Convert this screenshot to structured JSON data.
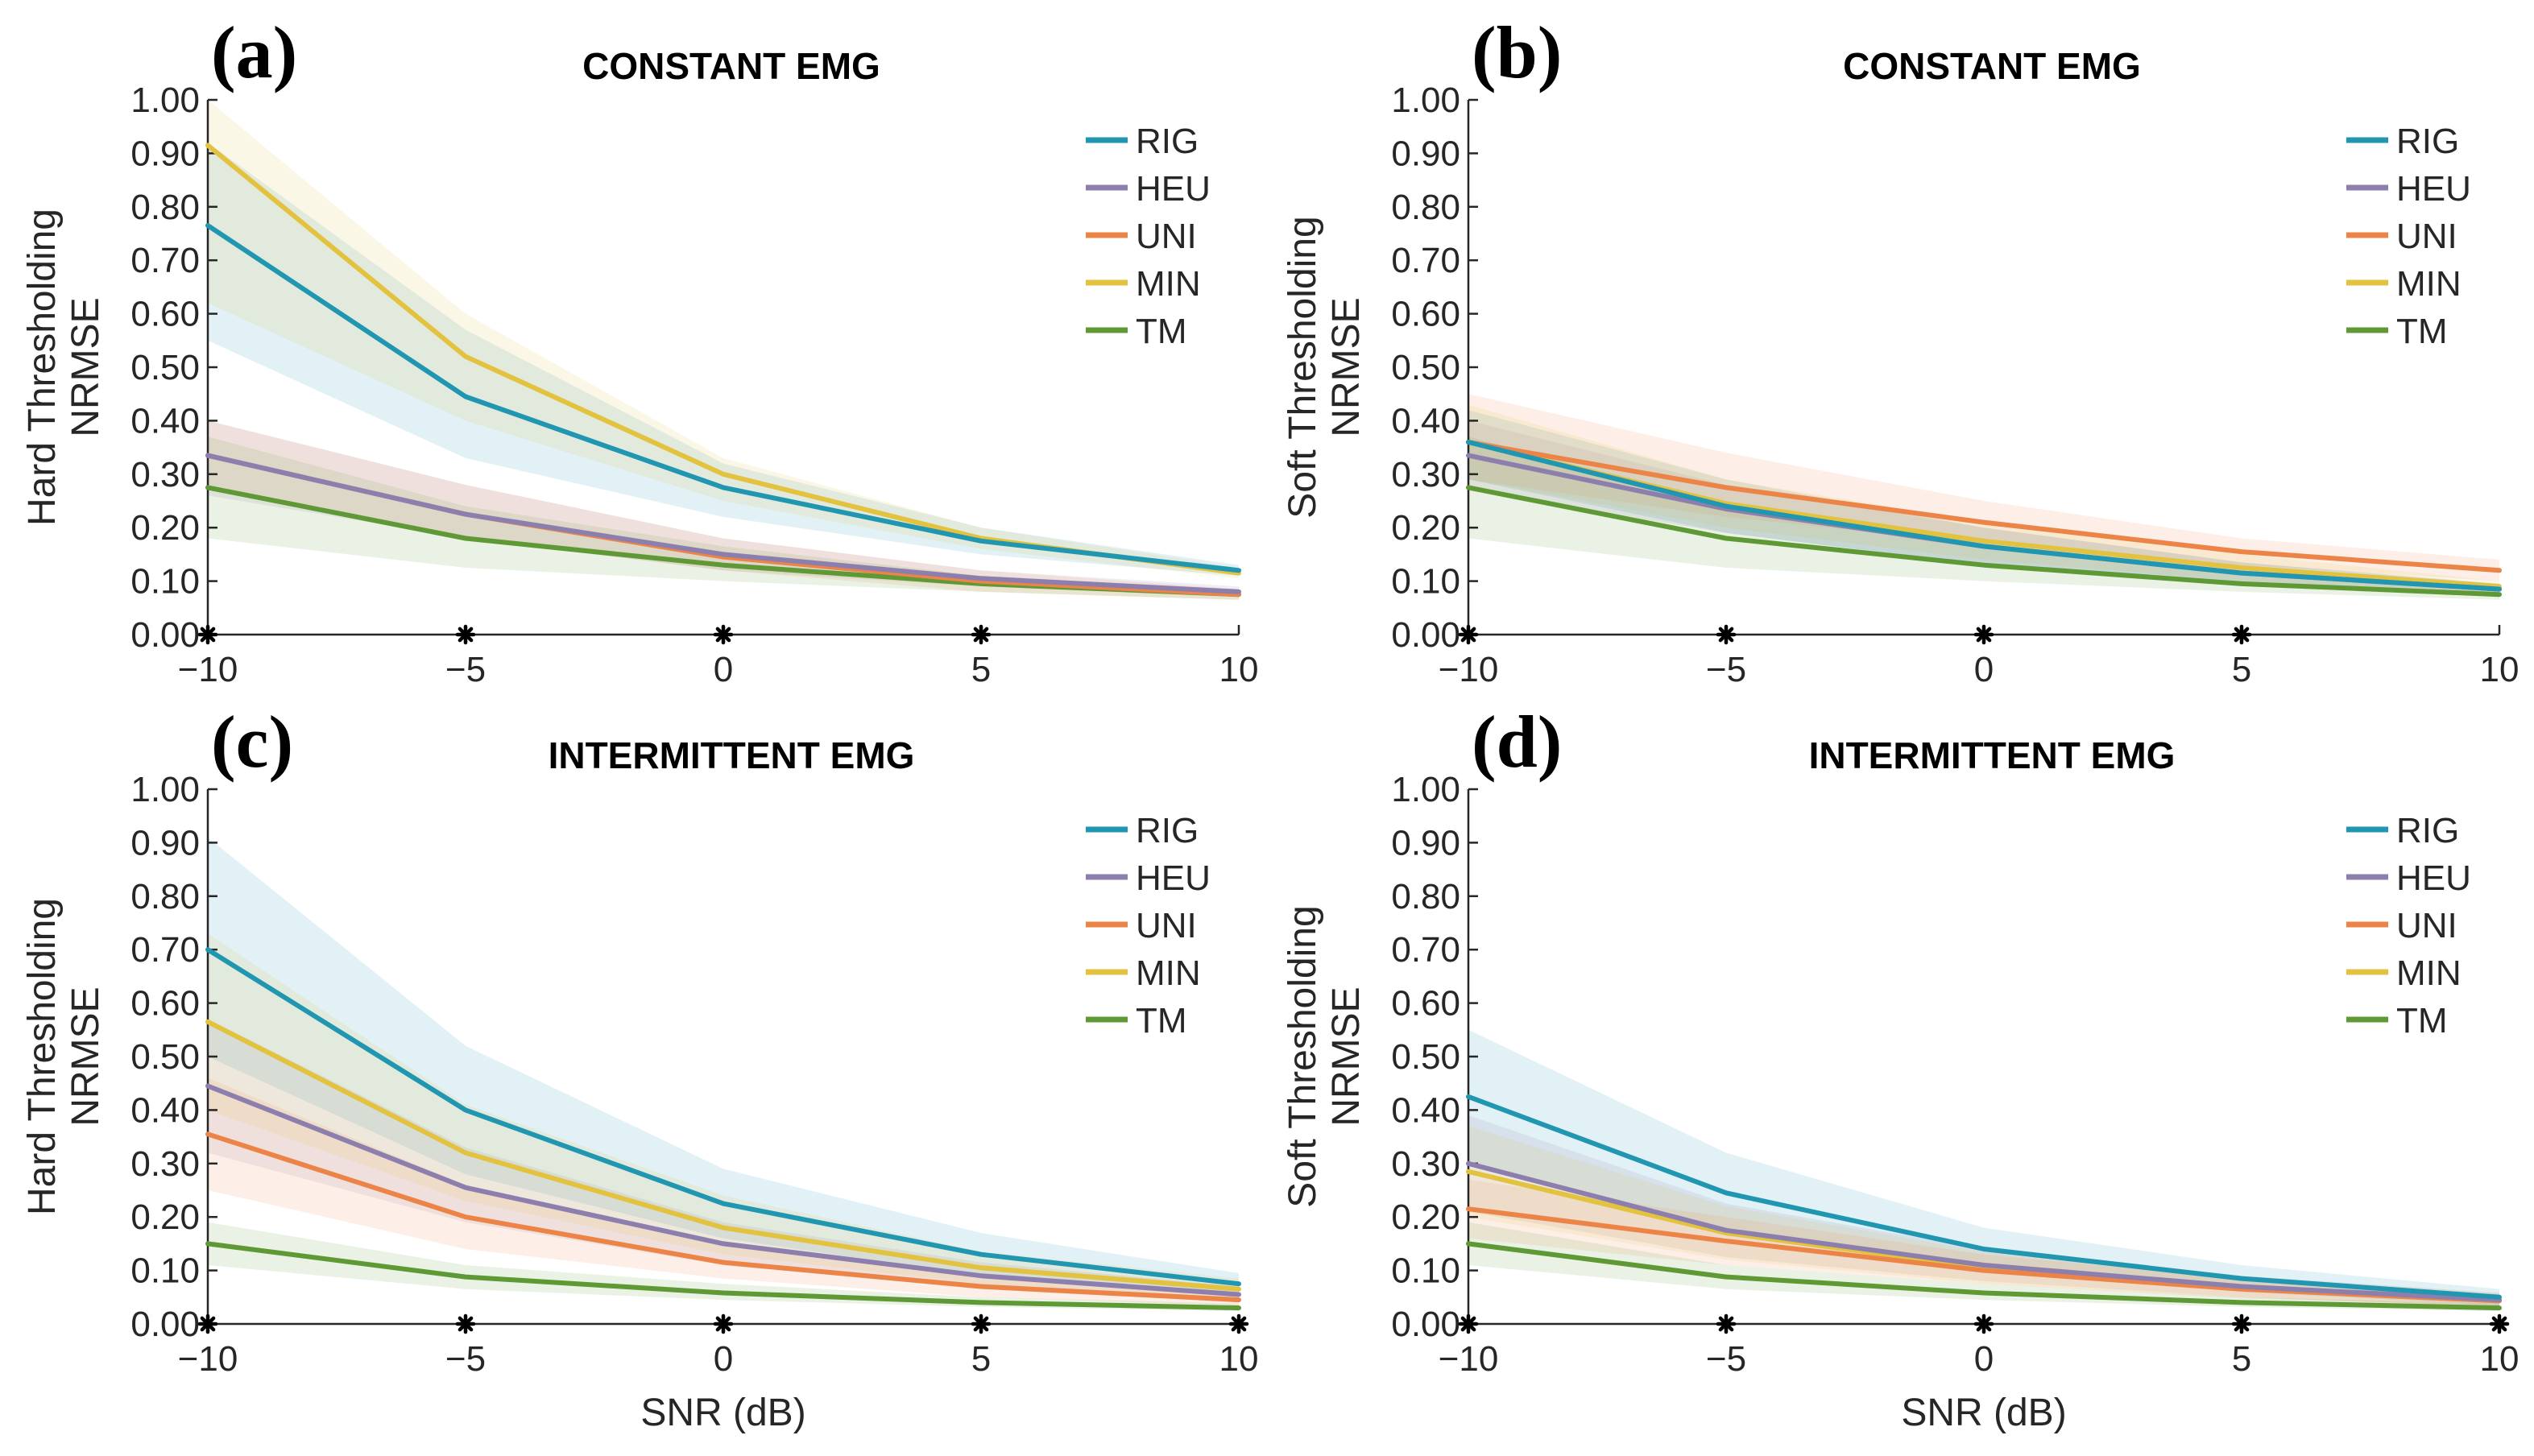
{
  "colors": {
    "RIG": "#2196b0",
    "HEU": "#8d7fad",
    "UNI": "#ec8448",
    "MIN": "#e2c23f",
    "TM": "#5f9935",
    "axis": "#262626"
  },
  "chart_data": [
    {
      "type": "line",
      "panel_label": "(a)",
      "title": "CONSTANT EMG",
      "ylabel_line1": "Hard Thresholding",
      "ylabel_line2": "NRMSE",
      "xlabel": "",
      "x": [
        -10,
        -5,
        0,
        5,
        10
      ],
      "xticks": [
        "−10",
        "−5",
        "0",
        "5",
        "10"
      ],
      "yticks": [
        "0.00",
        "0.10",
        "0.20",
        "0.30",
        "0.40",
        "0.50",
        "0.60",
        "0.70",
        "0.80",
        "0.90",
        "1.00"
      ],
      "xlim": [
        -10,
        10
      ],
      "ylim": [
        0,
        1
      ],
      "legend": "top-right",
      "series": [
        {
          "name": "RIG",
          "values": [
            0.765,
            0.445,
            0.275,
            0.175,
            0.12
          ],
          "lower": [
            0.55,
            0.33,
            0.22,
            0.15,
            0.11
          ],
          "upper": [
            0.92,
            0.57,
            0.32,
            0.2,
            0.13
          ]
        },
        {
          "name": "HEU",
          "values": [
            0.335,
            0.225,
            0.15,
            0.105,
            0.08
          ],
          "lower": [
            0.26,
            0.18,
            0.12,
            0.09,
            0.07
          ],
          "upper": [
            0.4,
            0.28,
            0.18,
            0.12,
            0.09
          ]
        },
        {
          "name": "UNI",
          "values": [
            0.335,
            0.225,
            0.145,
            0.1,
            0.075
          ],
          "lower": [
            0.27,
            0.18,
            0.12,
            0.08,
            0.065
          ],
          "upper": [
            0.4,
            0.28,
            0.18,
            0.12,
            0.085
          ]
        },
        {
          "name": "MIN",
          "values": [
            0.915,
            0.52,
            0.3,
            0.18,
            0.115
          ],
          "lower": [
            0.62,
            0.4,
            0.25,
            0.16,
            0.105
          ],
          "upper": [
            1.0,
            0.6,
            0.33,
            0.2,
            0.125
          ]
        },
        {
          "name": "TM",
          "values": [
            0.275,
            0.18,
            0.13,
            0.095,
            0.075
          ],
          "lower": [
            0.18,
            0.125,
            0.1,
            0.08,
            0.065
          ],
          "upper": [
            0.37,
            0.24,
            0.165,
            0.11,
            0.085
          ]
        }
      ],
      "significance_markers_at_x": [
        -10,
        -5,
        0,
        5
      ]
    },
    {
      "type": "line",
      "panel_label": "(b)",
      "title": "CONSTANT EMG",
      "ylabel_line1": "Soft Thresholding",
      "ylabel_line2": "NRMSE",
      "xlabel": "",
      "x": [
        -10,
        -5,
        0,
        5,
        10
      ],
      "xticks": [
        "−10",
        "−5",
        "0",
        "5",
        "10"
      ],
      "yticks": [
        "0.00",
        "0.10",
        "0.20",
        "0.30",
        "0.40",
        "0.50",
        "0.60",
        "0.70",
        "0.80",
        "0.90",
        "1.00"
      ],
      "xlim": [
        -10,
        10
      ],
      "ylim": [
        0,
        1
      ],
      "legend": "top-right",
      "series": [
        {
          "name": "RIG",
          "values": [
            0.36,
            0.24,
            0.165,
            0.115,
            0.085
          ],
          "lower": [
            0.29,
            0.19,
            0.13,
            0.095,
            0.075
          ],
          "upper": [
            0.42,
            0.29,
            0.2,
            0.135,
            0.095
          ]
        },
        {
          "name": "HEU",
          "values": [
            0.335,
            0.235,
            0.165,
            0.115,
            0.085
          ],
          "lower": [
            0.27,
            0.19,
            0.13,
            0.095,
            0.075
          ],
          "upper": [
            0.4,
            0.28,
            0.2,
            0.135,
            0.095
          ]
        },
        {
          "name": "UNI",
          "values": [
            0.36,
            0.275,
            0.21,
            0.155,
            0.12
          ],
          "lower": [
            0.29,
            0.22,
            0.17,
            0.13,
            0.1
          ],
          "upper": [
            0.45,
            0.34,
            0.25,
            0.18,
            0.14
          ]
        },
        {
          "name": "MIN",
          "values": [
            0.36,
            0.245,
            0.175,
            0.125,
            0.09
          ],
          "lower": [
            0.29,
            0.2,
            0.14,
            0.1,
            0.078
          ],
          "upper": [
            0.43,
            0.29,
            0.21,
            0.15,
            0.1
          ]
        },
        {
          "name": "TM",
          "values": [
            0.275,
            0.18,
            0.13,
            0.095,
            0.075
          ],
          "lower": [
            0.18,
            0.125,
            0.1,
            0.08,
            0.065
          ],
          "upper": [
            0.37,
            0.24,
            0.165,
            0.11,
            0.085
          ]
        }
      ],
      "significance_markers_at_x": [
        -10,
        -5,
        0,
        5
      ]
    },
    {
      "type": "line",
      "panel_label": "(c)",
      "title": "INTERMITTENT EMG",
      "ylabel_line1": "Hard Thresholding",
      "ylabel_line2": "NRMSE",
      "xlabel": "SNR (dB)",
      "x": [
        -10,
        -5,
        0,
        5,
        10
      ],
      "xticks": [
        "−10",
        "−5",
        "0",
        "5",
        "10"
      ],
      "yticks": [
        "0.00",
        "0.10",
        "0.20",
        "0.30",
        "0.40",
        "0.50",
        "0.60",
        "0.70",
        "0.80",
        "0.90",
        "1.00"
      ],
      "xlim": [
        -10,
        10
      ],
      "ylim": [
        0,
        1
      ],
      "legend": "top-right",
      "series": [
        {
          "name": "RIG",
          "values": [
            0.7,
            0.4,
            0.225,
            0.13,
            0.075
          ],
          "lower": [
            0.5,
            0.28,
            0.16,
            0.09,
            0.055
          ],
          "upper": [
            0.91,
            0.52,
            0.29,
            0.17,
            0.095
          ]
        },
        {
          "name": "HEU",
          "values": [
            0.445,
            0.255,
            0.15,
            0.09,
            0.055
          ],
          "lower": [
            0.32,
            0.19,
            0.11,
            0.065,
            0.04
          ],
          "upper": [
            0.57,
            0.33,
            0.19,
            0.115,
            0.07
          ]
        },
        {
          "name": "UNI",
          "values": [
            0.355,
            0.2,
            0.115,
            0.07,
            0.045
          ],
          "lower": [
            0.25,
            0.14,
            0.085,
            0.05,
            0.035
          ],
          "upper": [
            0.46,
            0.26,
            0.15,
            0.09,
            0.06
          ]
        },
        {
          "name": "MIN",
          "values": [
            0.565,
            0.32,
            0.18,
            0.105,
            0.065
          ],
          "lower": [
            0.4,
            0.23,
            0.13,
            0.075,
            0.045
          ],
          "upper": [
            0.73,
            0.41,
            0.24,
            0.135,
            0.085
          ]
        },
        {
          "name": "TM",
          "values": [
            0.15,
            0.088,
            0.058,
            0.04,
            0.03
          ],
          "lower": [
            0.11,
            0.065,
            0.045,
            0.032,
            0.024
          ],
          "upper": [
            0.19,
            0.11,
            0.075,
            0.05,
            0.038
          ]
        }
      ],
      "significance_markers_at_x": [
        -10,
        -5,
        0,
        5,
        10
      ]
    },
    {
      "type": "line",
      "panel_label": "(d)",
      "title": "INTERMITTENT EMG",
      "ylabel_line1": "Soft Thresholding",
      "ylabel_line2": "NRMSE",
      "xlabel": "SNR (dB)",
      "x": [
        -10,
        -5,
        0,
        5,
        10
      ],
      "xticks": [
        "−10",
        "−5",
        "0",
        "5",
        "10"
      ],
      "yticks": [
        "0.00",
        "0.10",
        "0.20",
        "0.30",
        "0.40",
        "0.50",
        "0.60",
        "0.70",
        "0.80",
        "0.90",
        "1.00"
      ],
      "xlim": [
        -10,
        10
      ],
      "ylim": [
        0,
        1
      ],
      "legend": "top-right",
      "series": [
        {
          "name": "RIG",
          "values": [
            0.425,
            0.245,
            0.14,
            0.085,
            0.05
          ],
          "lower": [
            0.3,
            0.17,
            0.1,
            0.06,
            0.035
          ],
          "upper": [
            0.55,
            0.32,
            0.18,
            0.11,
            0.065
          ]
        },
        {
          "name": "HEU",
          "values": [
            0.3,
            0.175,
            0.11,
            0.07,
            0.045
          ],
          "lower": [
            0.21,
            0.125,
            0.08,
            0.05,
            0.033
          ],
          "upper": [
            0.39,
            0.225,
            0.14,
            0.09,
            0.058
          ]
        },
        {
          "name": "UNI",
          "values": [
            0.215,
            0.155,
            0.1,
            0.065,
            0.043
          ],
          "lower": [
            0.16,
            0.11,
            0.075,
            0.048,
            0.032
          ],
          "upper": [
            0.27,
            0.2,
            0.13,
            0.085,
            0.055
          ]
        },
        {
          "name": "MIN",
          "values": [
            0.285,
            0.17,
            0.105,
            0.068,
            0.045
          ],
          "lower": [
            0.2,
            0.12,
            0.075,
            0.05,
            0.033
          ],
          "upper": [
            0.37,
            0.22,
            0.135,
            0.088,
            0.058
          ]
        },
        {
          "name": "TM",
          "values": [
            0.15,
            0.088,
            0.058,
            0.04,
            0.03
          ],
          "lower": [
            0.11,
            0.065,
            0.045,
            0.032,
            0.024
          ],
          "upper": [
            0.19,
            0.11,
            0.075,
            0.05,
            0.038
          ]
        }
      ],
      "significance_markers_at_x": [
        -10,
        -5,
        0,
        5,
        10
      ]
    }
  ]
}
